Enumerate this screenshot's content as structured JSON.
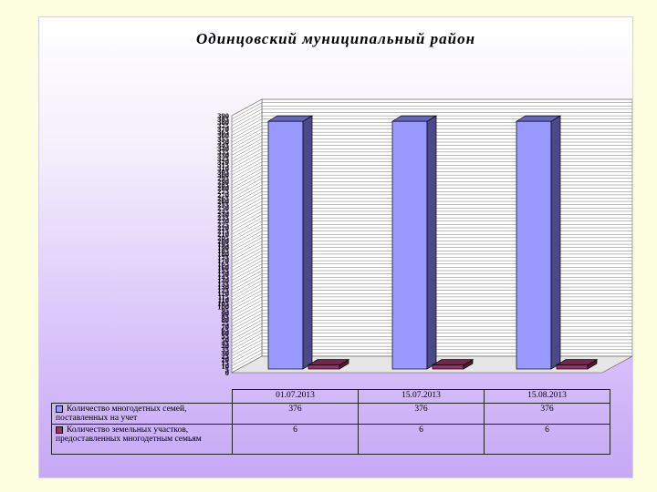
{
  "chart_data": {
    "type": "bar",
    "title": "Одинцовский муниципальный  район",
    "categories": [
      "01.07.2013",
      "15.07.2013",
      "15.08.2013"
    ],
    "series": [
      {
        "name": "Количество многодетных семей, поставленных на учет",
        "values": [
          376,
          376,
          376
        ],
        "color": "#9999ff",
        "side_color": "#4a4a8a",
        "top_color": "#6666bb"
      },
      {
        "name": "Количество земельных участков, предоставленных многодетным семьям",
        "values": [
          6,
          6,
          6
        ],
        "color": "#993366",
        "side_color": "#551833",
        "top_color": "#772250"
      }
    ],
    "ylim": [
      0,
      390
    ],
    "y_step": 5,
    "grid": true,
    "legend": "data-table"
  }
}
